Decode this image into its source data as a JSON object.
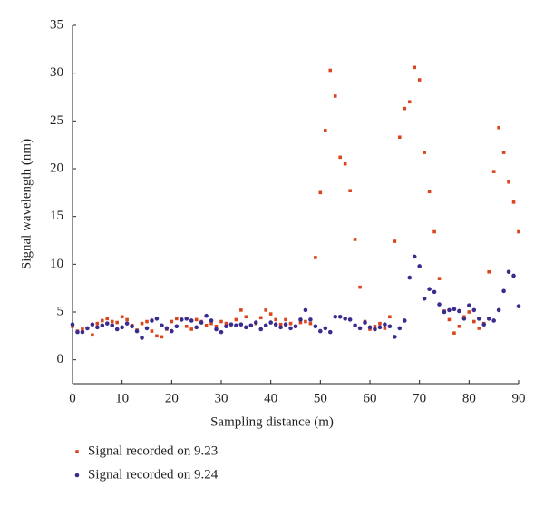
{
  "chart_data": {
    "type": "scatter",
    "x_label": "Sampling distance (m)",
    "y_label": "Signal wavelength (nm)",
    "x": [
      0,
      1,
      2,
      3,
      4,
      5,
      6,
      7,
      8,
      9,
      10,
      11,
      12,
      13,
      14,
      15,
      16,
      17,
      18,
      19,
      20,
      21,
      22,
      23,
      24,
      25,
      26,
      27,
      28,
      29,
      30,
      31,
      32,
      33,
      34,
      35,
      36,
      37,
      38,
      39,
      40,
      41,
      42,
      43,
      44,
      45,
      46,
      47,
      48,
      49,
      50,
      51,
      52,
      53,
      54,
      55,
      56,
      57,
      58,
      59,
      60,
      61,
      62,
      63,
      64,
      65,
      66,
      67,
      68,
      69,
      70,
      71,
      72,
      73,
      74,
      75,
      76,
      77,
      78,
      79,
      80,
      81,
      82,
      83,
      84,
      85,
      86,
      87,
      88,
      89,
      90
    ],
    "series": [
      {
        "name": "Signal recorded on 9.23",
        "color": "#d9451c",
        "marker": "square",
        "values": [
          3.5,
          3,
          3.2,
          3.3,
          2.6,
          3.8,
          4.1,
          4.3,
          4,
          3.9,
          4.5,
          4.2,
          3.6,
          3.1,
          3.8,
          4,
          3,
          2.5,
          2.4,
          3.2,
          4,
          4.3,
          4.2,
          3.5,
          3.2,
          4.2,
          4,
          3.6,
          3.8,
          3.5,
          4,
          3.8,
          3.7,
          4.2,
          5.2,
          4.5,
          3.6,
          3.8,
          4.4,
          5.2,
          4.8,
          4.2,
          3.7,
          4.2,
          3.8,
          3.5,
          3.9,
          4,
          3.8,
          10.7,
          17.5,
          24,
          30.3,
          27.6,
          21.2,
          20.5,
          17.7,
          12.6,
          7.6,
          4,
          3.2,
          3.5,
          3.8,
          3.3,
          4.5,
          12.4,
          23.3,
          26.3,
          27,
          30.6,
          29.3,
          21.7,
          17.6,
          13.4,
          8.5,
          5.1,
          4.2,
          2.8,
          3.5,
          4.5,
          5,
          4,
          3.3,
          3.8,
          9.2,
          19.7,
          24.3,
          21.7,
          18.6,
          16.5,
          13.4
        ]
      },
      {
        "name": "Signal recorded on 9.24",
        "color": "#3a2c8e",
        "marker": "circle",
        "values": [
          3.7,
          2.9,
          2.9,
          3.3,
          3.7,
          3.4,
          3.6,
          3.8,
          3.6,
          3.2,
          3.4,
          3.8,
          3.5,
          3,
          2.3,
          3.3,
          4.1,
          4.3,
          3.6,
          3.3,
          3,
          3.5,
          4.2,
          4.3,
          4.1,
          3.4,
          3.9,
          4.6,
          4.1,
          3.2,
          2.9,
          3.5,
          3.7,
          3.6,
          3.7,
          3.4,
          3.6,
          3.9,
          3.2,
          3.6,
          3.9,
          3.7,
          3.4,
          3.7,
          3.3,
          3.5,
          4.2,
          5.2,
          4.2,
          3.5,
          3,
          3.3,
          2.9,
          4.5,
          4.5,
          4.3,
          4.2,
          3.6,
          3.3,
          3.9,
          3.4,
          3.2,
          3.4,
          3.7,
          3.5,
          2.4,
          3.3,
          4.1,
          8.6,
          10.8,
          9.8,
          6.4,
          7.4,
          7.1,
          5.8,
          5,
          5.2,
          5.3,
          5.1,
          4.3,
          5.7,
          5.2,
          4.3,
          3.7,
          4.3,
          4.1,
          5.2,
          7.2,
          9.2,
          8.8,
          5.6
        ]
      }
    ],
    "xlim": [
      0,
      90
    ],
    "ylim": [
      -2.5,
      35
    ],
    "xticks": [
      0,
      10,
      20,
      30,
      40,
      50,
      60,
      70,
      80,
      90
    ],
    "yticks": [
      0,
      5,
      10,
      15,
      20,
      25,
      30,
      35
    ],
    "grid": false,
    "legend": "bottom"
  }
}
